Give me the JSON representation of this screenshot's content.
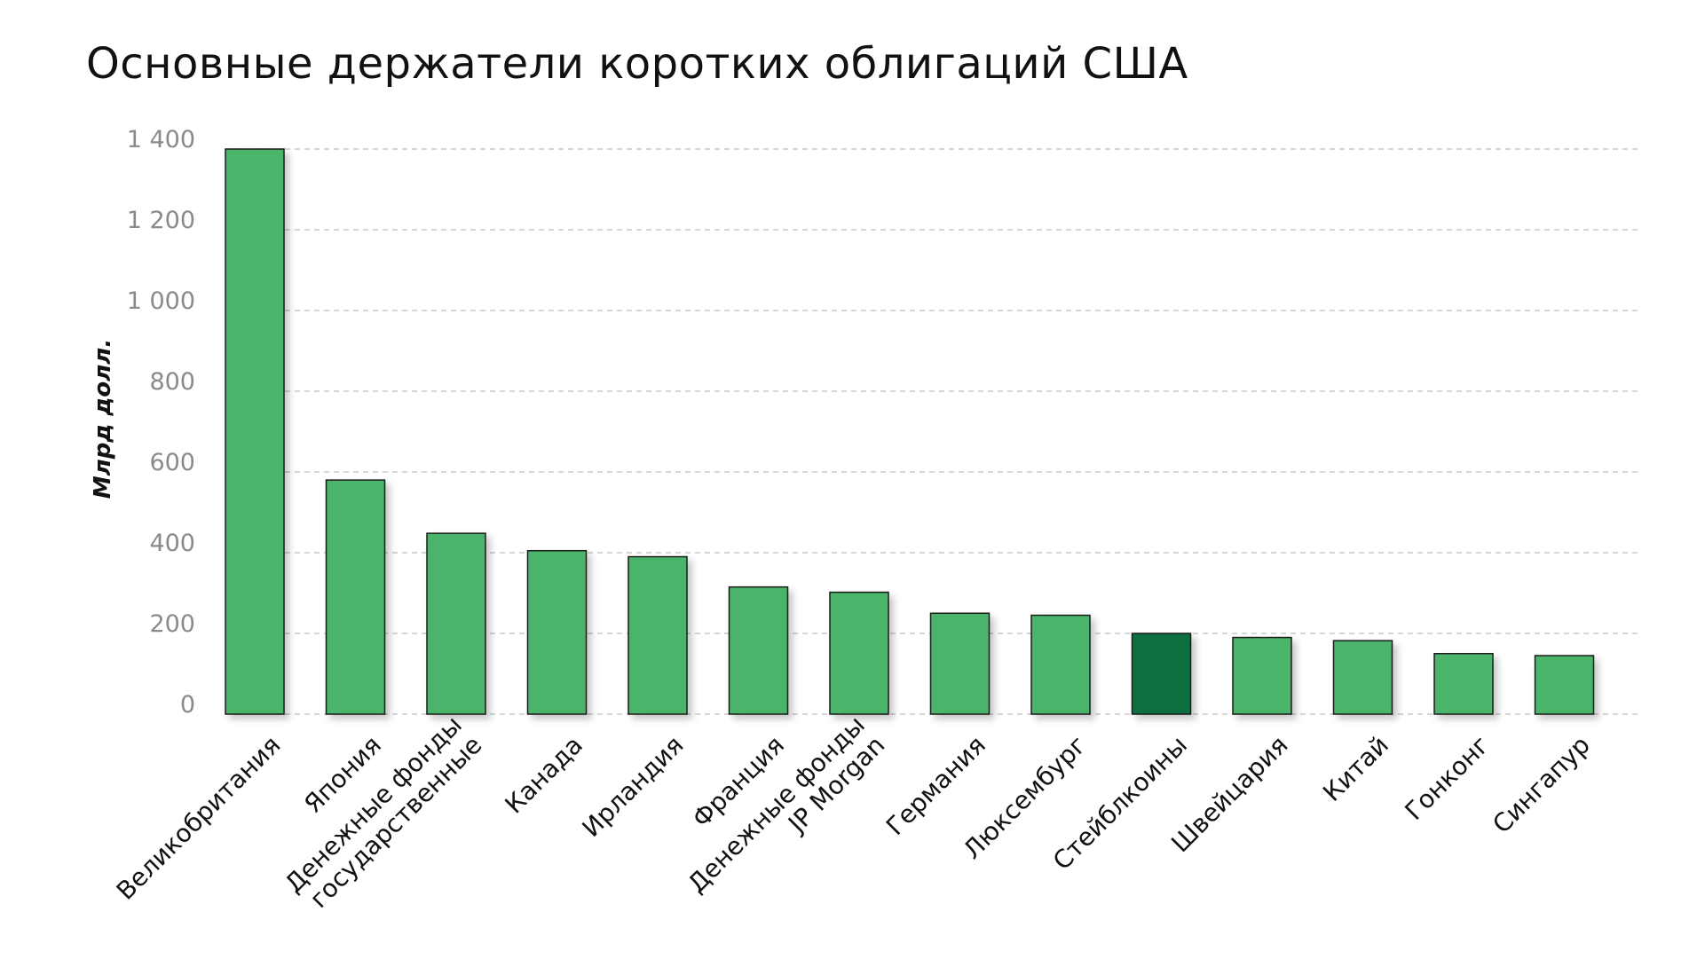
{
  "chart_data": {
    "type": "bar",
    "title": "Основные держатели коротких облигаций США",
    "ylabel": "Млрд долл.",
    "xlabel": "",
    "ylim": [
      0,
      1400
    ],
    "yticks": [
      "0",
      "200",
      "400",
      "600",
      "800",
      "1 000",
      "1 200",
      "1 400"
    ],
    "ytick_values": [
      0,
      200,
      400,
      600,
      800,
      1000,
      1200,
      1400
    ],
    "grid": true,
    "categories": [
      [
        "Великобритания"
      ],
      [
        "Япония"
      ],
      [
        "Денежные фонды",
        "государственные"
      ],
      [
        "Канада"
      ],
      [
        "Ирландия"
      ],
      [
        "Франция"
      ],
      [
        "Денежные фонды",
        "JP Morgan"
      ],
      [
        "Германия"
      ],
      [
        "Люксембург"
      ],
      [
        "Стейблкоины"
      ],
      [
        "Швейцария"
      ],
      [
        "Китай"
      ],
      [
        "Гонконг"
      ],
      [
        "Сингапур"
      ]
    ],
    "values": [
      1400,
      580,
      448,
      405,
      390,
      315,
      302,
      250,
      245,
      200,
      190,
      182,
      150,
      145
    ],
    "colors": {
      "bar": "#48b46a",
      "highlight": "#0e6e3f",
      "bar_stroke": "#1a1a1a",
      "grid": "#c8c8c8"
    },
    "highlight_category": "Стейблкоины"
  }
}
